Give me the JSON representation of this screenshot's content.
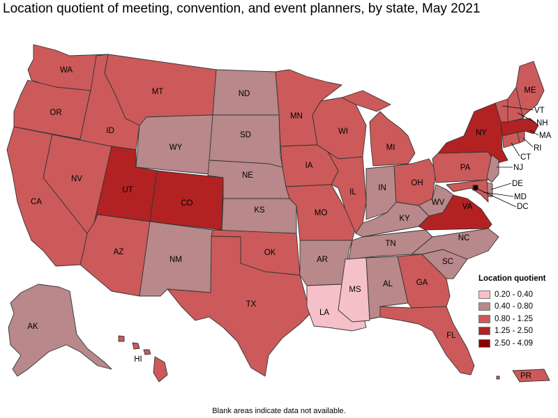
{
  "title": "Location quotient of meeting, convention, and event planners, by state, May 2021",
  "note": "Blank areas indicate data not available.",
  "legend": {
    "title": "Location quotient",
    "bins": [
      {
        "label": "0.20 - 0.40",
        "color": "#f6c0c8"
      },
      {
        "label": "0.40 - 0.80",
        "color": "#b8888a"
      },
      {
        "label": "0.80 - 1.25",
        "color": "#cc5a5a"
      },
      {
        "label": "1.25 - 2.50",
        "color": "#b22222"
      },
      {
        "label": "2.50 - 4.09",
        "color": "#8b0000"
      }
    ]
  },
  "states": {
    "WA": 2,
    "OR": 2,
    "CA": 2,
    "NV": 2,
    "ID": 2,
    "MT": 2,
    "WY": 1,
    "UT": 3,
    "CO": 3,
    "AZ": 2,
    "NM": 1,
    "ND": 1,
    "SD": 1,
    "NE": 1,
    "KS": 1,
    "OK": 2,
    "TX": 2,
    "MN": 2,
    "IA": 2,
    "MO": 2,
    "AR": 1,
    "LA": 0,
    "WI": 2,
    "IL": 2,
    "MS": 0,
    "MI": 2,
    "IN": 1,
    "KY": 1,
    "TN": 1,
    "AL": 1,
    "GA": 2,
    "FL": 2,
    "OH": 2,
    "WV": 1,
    "VA": 3,
    "NC": 1,
    "SC": 1,
    "PA": 2,
    "NY": 3,
    "NJ": 1,
    "DE": 1,
    "MD": 2,
    "DC": 4,
    "CT": 2,
    "RI": 2,
    "MA": 3,
    "VT": 2,
    "NH": 2,
    "ME": 2,
    "AK": 1,
    "HI": 2,
    "PR": 2
  },
  "labels": {
    "WA": "WA",
    "OR": "OR",
    "CA": "CA",
    "NV": "NV",
    "ID": "ID",
    "MT": "MT",
    "WY": "WY",
    "UT": "UT",
    "CO": "CO",
    "AZ": "AZ",
    "NM": "NM",
    "ND": "ND",
    "SD": "SD",
    "NE": "NE",
    "KS": "KS",
    "OK": "OK",
    "TX": "TX",
    "MN": "MN",
    "IA": "IA",
    "MO": "MO",
    "AR": "AR",
    "LA": "LA",
    "WI": "WI",
    "IL": "IL",
    "MS": "MS",
    "MI": "MI",
    "IN": "IN",
    "KY": "KY",
    "TN": "TN",
    "AL": "AL",
    "GA": "GA",
    "FL": "FL",
    "OH": "OH",
    "WV": "WV",
    "VA": "VA",
    "NC": "NC",
    "SC": "SC",
    "PA": "PA",
    "NY": "NY",
    "ME": "ME",
    "AK": "AK",
    "HI": "HI",
    "PR": "PR",
    "VT": "VT",
    "NH": "NH",
    "MA": "MA",
    "RI": "RI",
    "CT": "CT",
    "NJ": "NJ",
    "DE": "DE",
    "MD": "MD",
    "DC": "DC"
  }
}
